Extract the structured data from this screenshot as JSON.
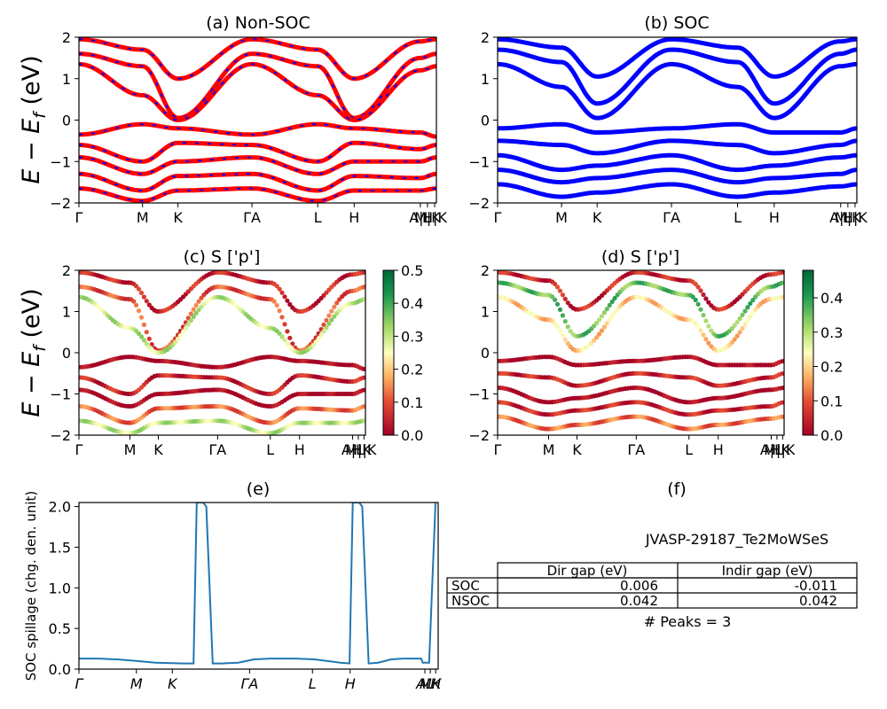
{
  "figure": {
    "panel_a": {
      "title": "(a) Non-SOC",
      "ylabel": "E − E",
      "ylabel_sub": "f",
      "ylabel_unit": " (eV)",
      "yticks": [
        "2",
        "1",
        "0",
        "−1",
        "−2"
      ],
      "kpath": [
        "Γ",
        "M",
        "K",
        "ΓA",
        "L",
        "H",
        "A|L",
        "M|K",
        "H|K"
      ]
    },
    "panel_b": {
      "title": "(b) SOC",
      "yticks": [
        "2",
        "1",
        "0",
        "−1",
        "−2"
      ],
      "kpath": [
        "Γ",
        "M",
        "K",
        "ΓA",
        "L",
        "H",
        "A|L",
        "M|K",
        "H|K"
      ]
    },
    "panel_c": {
      "title": "(c)  S ['p']",
      "ylabel": "E − E",
      "ylabel_sub": "f",
      "ylabel_unit": " (eV)",
      "yticks": [
        "2",
        "1",
        "0",
        "−1",
        "−2"
      ],
      "kpath": [
        "Γ",
        "M",
        "K",
        "ΓA",
        "L",
        "H",
        "A|L",
        "M|K",
        "H|K"
      ],
      "colorbar_ticks": [
        "0.5",
        "0.4",
        "0.3",
        "0.2",
        "0.1",
        "0.0"
      ]
    },
    "panel_d": {
      "title": "(d) S ['p']",
      "yticks": [
        "2",
        "1",
        "0",
        "−1",
        "−2"
      ],
      "kpath": [
        "Γ",
        "M",
        "K",
        "ΓA",
        "L",
        "H",
        "A|L",
        "M|K",
        "H|K"
      ],
      "colorbar_ticks": [
        "0.4",
        "0.3",
        "0.2",
        "0.1",
        "0.0"
      ]
    },
    "panel_e": {
      "title": "(e)",
      "ylabel": "SOC spillage (chg. den. unit)",
      "yticks": [
        "2.0",
        "1.5",
        "1.0",
        "0.5",
        "0.0"
      ],
      "kpath": [
        "Γ",
        "M",
        "K",
        "ΓA",
        "L",
        "H",
        "AL",
        "MK",
        "H"
      ]
    },
    "panel_f": {
      "title": "(f)",
      "material": "JVASP-29187_Te2MoWSeS",
      "table": {
        "headers": [
          "Dir gap (eV)",
          "Indir gap (eV)"
        ],
        "rows": [
          {
            "label": "SOC",
            "dir": "0.006",
            "indir": "-0.011"
          },
          {
            "label": "NSOC",
            "dir": "0.042",
            "indir": "0.042"
          }
        ]
      },
      "peaks": "# Peaks = 3"
    }
  },
  "colors": {
    "nonsoc_band": "#ff0000",
    "nonsoc_dash": "#0000ff",
    "soc_band": "#0000ff",
    "spillage_line": "#1f77b4"
  },
  "chart_data": [
    {
      "type": "line",
      "title": "(a) Non-SOC",
      "ylabel": "E − E_f (eV)",
      "ylim": [
        -2,
        2
      ],
      "x_ticks": [
        "Γ",
        "M",
        "K",
        "ΓA",
        "L",
        "H",
        "A|L",
        "M|K",
        "H|K"
      ],
      "series": [
        {
          "values": [
            1.95,
            1.7,
            1.0,
            1.95,
            1.7,
            1.0,
            1.9,
            1.95
          ]
        },
        {
          "values": [
            1.6,
            1.3,
            0.05,
            1.6,
            1.3,
            0.05,
            1.5,
            1.6
          ]
        },
        {
          "values": [
            1.35,
            0.6,
            0.0,
            1.35,
            0.6,
            0.0,
            1.2,
            1.3
          ]
        },
        {
          "values": [
            -0.35,
            -0.1,
            -0.2,
            -0.35,
            -0.1,
            -0.2,
            -0.3,
            -0.4
          ]
        },
        {
          "values": [
            -0.6,
            -1.0,
            -0.55,
            -0.6,
            -1.0,
            -0.55,
            -0.7,
            -0.6
          ]
        },
        {
          "values": [
            -0.9,
            -1.3,
            -1.0,
            -0.9,
            -1.3,
            -1.0,
            -1.0,
            -0.9
          ]
        },
        {
          "values": [
            -1.3,
            -1.7,
            -1.35,
            -1.3,
            -1.7,
            -1.35,
            -1.4,
            -1.3
          ]
        },
        {
          "values": [
            -1.65,
            -1.95,
            -1.7,
            -1.65,
            -1.95,
            -1.7,
            -1.7,
            -1.65
          ]
        }
      ]
    },
    {
      "type": "line",
      "title": "(b) SOC",
      "ylim": [
        -2,
        2
      ],
      "x_ticks": [
        "Γ",
        "M",
        "K",
        "ΓA",
        "L",
        "H",
        "A|L",
        "M|K",
        "H|K"
      ],
      "series": [
        {
          "values": [
            1.95,
            1.75,
            1.05,
            1.95,
            1.75,
            1.05,
            1.9,
            1.95
          ]
        },
        {
          "values": [
            1.7,
            1.4,
            0.4,
            1.7,
            1.4,
            0.4,
            1.6,
            1.7
          ]
        },
        {
          "values": [
            1.35,
            0.8,
            0.05,
            1.35,
            0.8,
            0.05,
            1.3,
            1.35
          ]
        },
        {
          "values": [
            -0.2,
            -0.1,
            -0.3,
            -0.2,
            -0.1,
            -0.3,
            -0.3,
            -0.2
          ]
        },
        {
          "values": [
            -0.5,
            -0.6,
            -0.8,
            -0.5,
            -0.6,
            -0.8,
            -0.6,
            -0.5
          ]
        },
        {
          "values": [
            -0.85,
            -1.2,
            -1.1,
            -0.85,
            -1.2,
            -1.1,
            -0.9,
            -0.85
          ]
        },
        {
          "values": [
            -1.2,
            -1.5,
            -1.4,
            -1.2,
            -1.5,
            -1.4,
            -1.3,
            -1.2
          ]
        },
        {
          "values": [
            -1.55,
            -1.85,
            -1.75,
            -1.55,
            -1.85,
            -1.75,
            -1.6,
            -1.55
          ]
        }
      ]
    },
    {
      "type": "scatter",
      "title": "(c)  S ['p']",
      "ylabel": "E − E_f (eV)",
      "ylim": [
        -2,
        2
      ],
      "colorbar_range": [
        0.0,
        0.5
      ],
      "x_ticks": [
        "Γ",
        "M",
        "K",
        "ΓA",
        "L",
        "H",
        "A|L",
        "M|K",
        "H|K"
      ],
      "series": [
        {
          "values": [
            1.95,
            1.7,
            1.0,
            1.95,
            1.7,
            1.0,
            1.9,
            1.95
          ],
          "weight": 0.05
        },
        {
          "values": [
            1.6,
            1.3,
            0.05,
            1.6,
            1.3,
            0.05,
            1.5,
            1.6
          ],
          "weight": 0.1
        },
        {
          "values": [
            1.35,
            0.6,
            0.0,
            1.35,
            0.6,
            0.0,
            1.2,
            1.3
          ],
          "weight": 0.3
        },
        {
          "values": [
            -0.35,
            -0.1,
            -0.2,
            -0.35,
            -0.1,
            -0.2,
            -0.3,
            -0.4
          ],
          "weight": 0.0
        },
        {
          "values": [
            -0.6,
            -1.0,
            -0.55,
            -0.6,
            -1.0,
            -0.55,
            -0.7,
            -0.6
          ],
          "weight": 0.05
        },
        {
          "values": [
            -0.9,
            -1.3,
            -1.0,
            -0.9,
            -1.3,
            -1.0,
            -1.0,
            -0.9
          ],
          "weight": 0.0
        },
        {
          "values": [
            -1.3,
            -1.7,
            -1.35,
            -1.3,
            -1.7,
            -1.35,
            -1.4,
            -1.3
          ],
          "weight": 0.12
        },
        {
          "values": [
            -1.65,
            -1.95,
            -1.7,
            -1.65,
            -1.95,
            -1.7,
            -1.7,
            -1.65
          ],
          "weight": 0.3
        }
      ]
    },
    {
      "type": "scatter",
      "title": "(d) S ['p']",
      "ylim": [
        -2,
        2
      ],
      "colorbar_range": [
        0.0,
        0.48
      ],
      "x_ticks": [
        "Γ",
        "M",
        "K",
        "ΓA",
        "L",
        "H",
        "A|L",
        "M|K",
        "H|K"
      ],
      "series": [
        {
          "values": [
            1.95,
            1.75,
            1.05,
            1.95,
            1.75,
            1.05,
            1.9,
            1.95
          ],
          "weight": 0.05
        },
        {
          "values": [
            1.7,
            1.4,
            0.4,
            1.7,
            1.4,
            0.4,
            1.6,
            1.7
          ],
          "weight": 0.35
        },
        {
          "values": [
            1.35,
            0.8,
            0.05,
            1.35,
            0.8,
            0.05,
            1.3,
            1.35
          ],
          "weight": 0.2
        },
        {
          "values": [
            -0.2,
            -0.1,
            -0.3,
            -0.2,
            -0.1,
            -0.3,
            -0.3,
            -0.2
          ],
          "weight": 0.0
        },
        {
          "values": [
            -0.5,
            -0.6,
            -0.8,
            -0.5,
            -0.6,
            -0.8,
            -0.6,
            -0.5
          ],
          "weight": 0.05
        },
        {
          "values": [
            -0.85,
            -1.2,
            -1.1,
            -0.85,
            -1.2,
            -1.1,
            -0.9,
            -0.85
          ],
          "weight": 0.0
        },
        {
          "values": [
            -1.2,
            -1.5,
            -1.4,
            -1.2,
            -1.5,
            -1.4,
            -1.3,
            -1.2
          ],
          "weight": 0.05
        },
        {
          "values": [
            -1.55,
            -1.85,
            -1.75,
            -1.55,
            -1.85,
            -1.75,
            -1.6,
            -1.55
          ],
          "weight": 0.12
        }
      ]
    },
    {
      "type": "line",
      "title": "(e)",
      "ylabel": "SOC spillage (chg. den. unit)",
      "ylim": [
        0,
        2.05
      ],
      "x": [
        0,
        12,
        24,
        36,
        48,
        66,
        72,
        74,
        78,
        80,
        84,
        90,
        100,
        110,
        120,
        136,
        148,
        164,
        170,
        172,
        176,
        178,
        182,
        188,
        196,
        204,
        210,
        215,
        216,
        218,
        220,
        224
      ],
      "y": [
        0.13,
        0.13,
        0.12,
        0.1,
        0.08,
        0.07,
        0.07,
        2.05,
        2.05,
        2.0,
        0.07,
        0.07,
        0.08,
        0.12,
        0.13,
        0.13,
        0.12,
        0.08,
        0.07,
        2.05,
        2.05,
        2.0,
        0.07,
        0.08,
        0.12,
        0.13,
        0.13,
        0.13,
        0.08,
        0.08,
        0.08,
        2.05
      ],
      "x_ticks": [
        "Γ",
        "M",
        "K",
        "ΓA",
        "L",
        "H",
        "AL",
        "MK",
        "H"
      ]
    }
  ]
}
